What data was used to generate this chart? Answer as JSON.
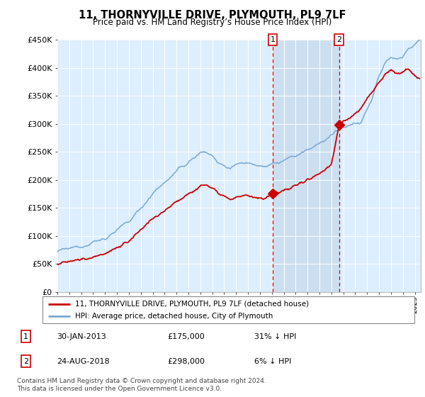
{
  "title": "11, THORNYVILLE DRIVE, PLYMOUTH, PL9 7LF",
  "subtitle": "Price paid vs. HM Land Registry’s House Price Index (HPI)",
  "hpi_color": "#7aa8d4",
  "price_color": "#cc0000",
  "shade_color": "#ccdff0",
  "bg_color": "#ddeeff",
  "ylim": [
    0,
    450000
  ],
  "yticks": [
    0,
    50000,
    100000,
    150000,
    200000,
    250000,
    300000,
    350000,
    400000,
    450000
  ],
  "sale1": {
    "year": 2013.08,
    "price": 175000,
    "label": "1",
    "date": "30-JAN-2013",
    "pct": "31% ↓ HPI"
  },
  "sale2": {
    "year": 2018.65,
    "price": 298000,
    "label": "2",
    "date": "24-AUG-2018",
    "pct": "6% ↓ HPI"
  },
  "legend1": "11, THORNYVILLE DRIVE, PLYMOUTH, PL9 7LF (detached house)",
  "legend2": "HPI: Average price, detached house, City of Plymouth",
  "footnote": "Contains HM Land Registry data © Crown copyright and database right 2024.\nThis data is licensed under the Open Government Licence v3.0.",
  "xmin": 1995.0,
  "xmax": 2025.5
}
